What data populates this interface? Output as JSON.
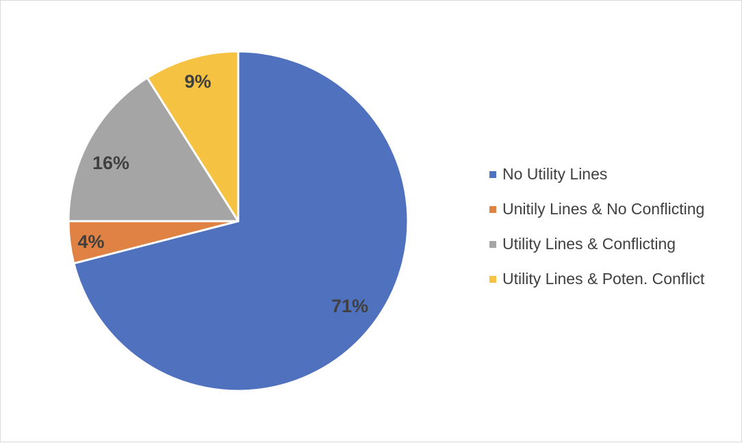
{
  "chart_data": {
    "type": "pie",
    "categories": [
      "No Utility Lines",
      "Unitily Lines & No Conflicting",
      "Utility Lines & Conflicting",
      "Utility Lines & Poten. Conflict"
    ],
    "values": [
      71,
      4,
      16,
      9
    ],
    "data_labels": [
      "71%",
      "4%",
      "16%",
      "9%"
    ],
    "colors": [
      "#4f71be",
      "#df8244",
      "#a5a5a5",
      "#f5c242"
    ],
    "legend_position": "right",
    "start_angle": "12 o'clock",
    "direction": "clockwise"
  }
}
